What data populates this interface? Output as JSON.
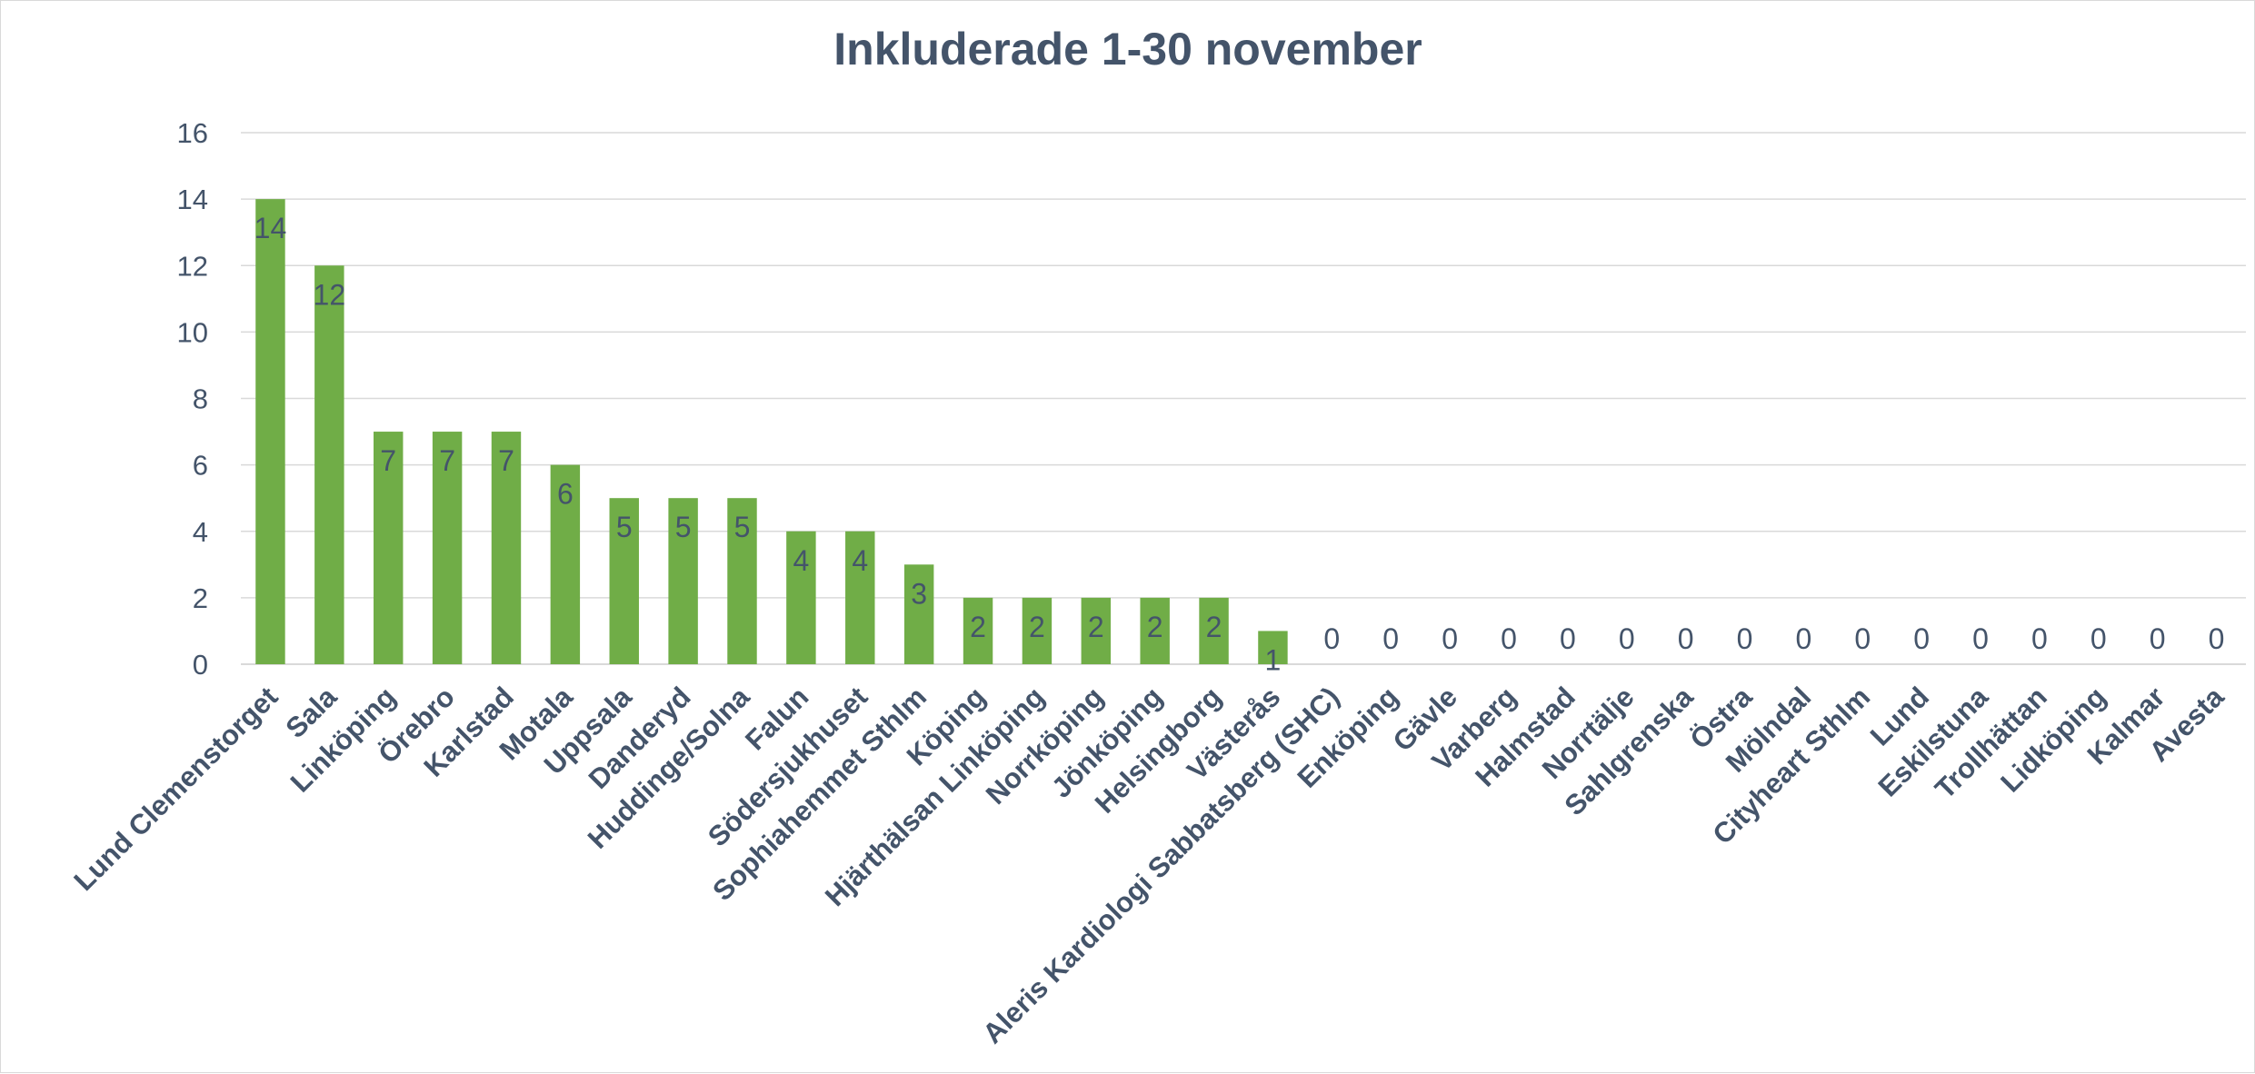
{
  "chart_data": {
    "type": "bar",
    "title": "Inkluderade 1-30 november",
    "xlabel": "",
    "ylabel": "",
    "ylim": [
      0,
      16
    ],
    "yticks": [
      0,
      2,
      4,
      6,
      8,
      10,
      12,
      14,
      16
    ],
    "grid": true,
    "legend": "none",
    "bar_color": "#70ad47",
    "text_color": "#44546a",
    "categories": [
      "Lund Clemenstorget",
      "Sala",
      "Linköping",
      "Örebro",
      "Karlstad",
      "Motala",
      "Uppsala",
      "Danderyd",
      "Huddinge/Solna",
      "Falun",
      "Södersjukhuset",
      "Sophiahemmet Sthlm",
      "Köping",
      "Hjärthälsan Linköping",
      "Norrköping",
      "Jönköping",
      "Helsingborg",
      "Västerås",
      "Aleris Kardiologi Sabbatsberg (SHC)",
      "Enköping",
      "Gävle",
      "Varberg",
      "Halmstad",
      "Norrtälje",
      "Sahlgrenska",
      "Östra",
      "Mölndal",
      "Cityheart Sthlm",
      "Lund",
      "Eskilstuna",
      "Trollhättan",
      "Lidköping",
      "Kalmar",
      "Avesta"
    ],
    "values": [
      14,
      12,
      7,
      7,
      7,
      6,
      5,
      5,
      5,
      4,
      4,
      3,
      2,
      2,
      2,
      2,
      2,
      1,
      0,
      0,
      0,
      0,
      0,
      0,
      0,
      0,
      0,
      0,
      0,
      0,
      0,
      0,
      0,
      0
    ]
  }
}
